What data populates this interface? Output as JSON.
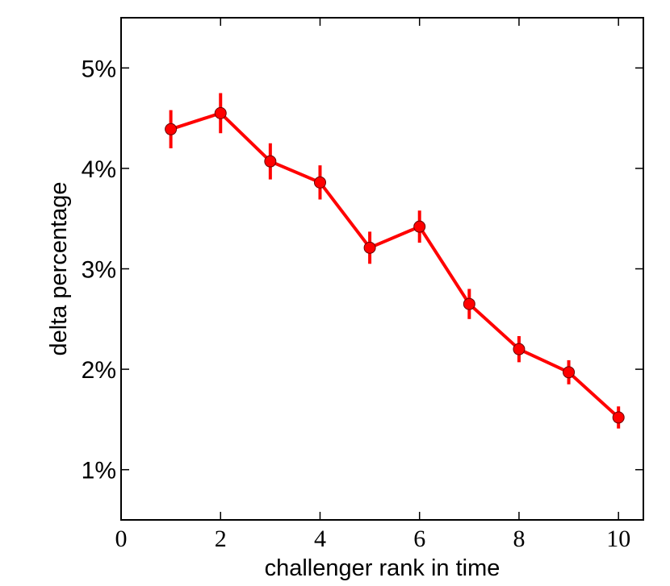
{
  "chart_data": {
    "type": "line",
    "title": "",
    "xlabel": "challenger rank in time",
    "ylabel": "delta percentage",
    "xlim": [
      0,
      10.5
    ],
    "ylim": [
      0.5,
      5.5
    ],
    "x_ticks": [
      0,
      2,
      4,
      6,
      8,
      10
    ],
    "x_tick_labels": [
      "0",
      "2",
      "4",
      "6",
      "8",
      "10"
    ],
    "y_ticks": [
      1,
      2,
      3,
      4,
      5
    ],
    "y_tick_labels": [
      "1%",
      "2%",
      "3%",
      "4%",
      "5%"
    ],
    "grid": false,
    "series": [
      {
        "color": "#ff0000",
        "x": [
          1,
          2,
          3,
          4,
          5,
          6,
          7,
          8,
          9,
          10
        ],
        "y": [
          4.39,
          4.55,
          4.07,
          3.86,
          3.21,
          3.42,
          2.65,
          2.2,
          1.97,
          1.52
        ],
        "yerr": [
          0.19,
          0.2,
          0.18,
          0.17,
          0.16,
          0.16,
          0.15,
          0.13,
          0.12,
          0.11
        ]
      }
    ]
  }
}
